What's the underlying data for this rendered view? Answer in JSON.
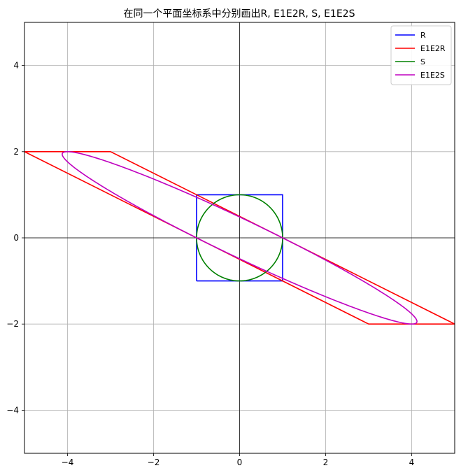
{
  "chart_data": {
    "type": "line",
    "title": "在同一个平面坐标系中分别画出R, E1E2R, S, E1E2S",
    "xlabel": "",
    "ylabel": "",
    "xlim": [
      -5,
      5
    ],
    "ylim": [
      -5,
      5
    ],
    "xticks": [
      -4,
      -2,
      0,
      2,
      4
    ],
    "yticks": [
      -4,
      -2,
      0,
      2,
      4
    ],
    "grid": true,
    "legend_position": "top-right",
    "series": [
      {
        "name": "R",
        "color": "#0000ff",
        "kind": "polygon",
        "points": [
          [
            -1,
            -1
          ],
          [
            1,
            -1
          ],
          [
            1,
            1
          ],
          [
            -1,
            1
          ],
          [
            -1,
            -1
          ]
        ]
      },
      {
        "name": "E1E2R",
        "color": "#ff0000",
        "kind": "polygon",
        "points": [
          [
            -5,
            2
          ],
          [
            -3,
            2
          ],
          [
            5,
            -2
          ],
          [
            3,
            -2
          ],
          [
            -5,
            2
          ]
        ]
      },
      {
        "name": "S",
        "color": "#008000",
        "kind": "parametric",
        "matrix": [
          [
            1,
            0
          ],
          [
            0,
            1
          ]
        ]
      },
      {
        "name": "E1E2S",
        "color": "#bf00bf",
        "kind": "parametric",
        "matrix": [
          [
            1,
            -4
          ],
          [
            0,
            2
          ]
        ]
      }
    ]
  }
}
